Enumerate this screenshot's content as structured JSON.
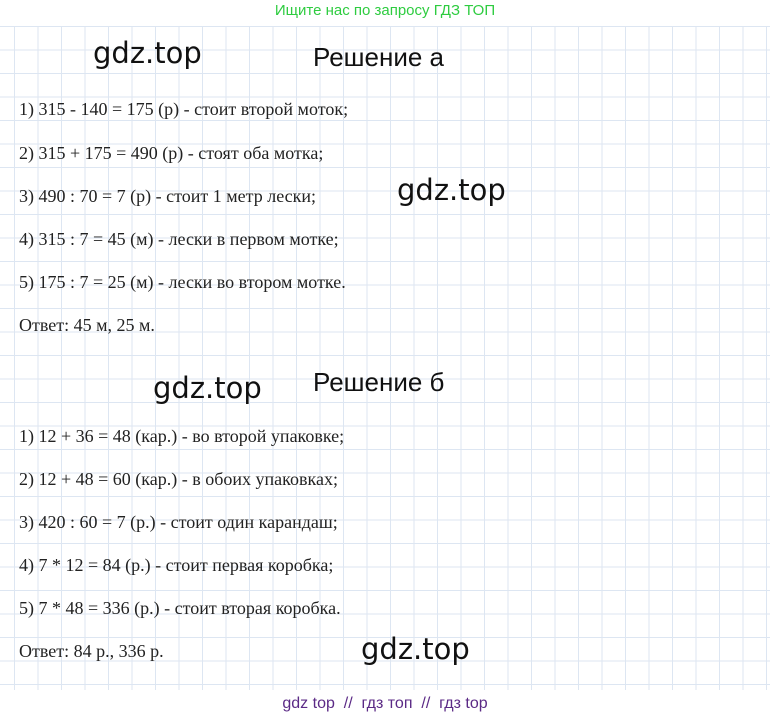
{
  "top_banner": "Ищите нас по запросу ГДЗ ТОП",
  "watermark": "gdz.top",
  "part_a": {
    "title": "Решение а",
    "lines": [
      "1) 315 - 140 = 175 (р) - стоит второй моток;",
      "2) 315 + 175 = 490 (р) - стоят оба мотка;",
      "3) 490 : 70 = 7 (р) - стоит 1 метр лески;",
      "4) 315 : 7 = 45 (м) - лески в первом мотке;",
      "5) 175 : 7 = 25 (м) - лески во втором мотке."
    ],
    "answer": "Ответ: 45 м, 25 м."
  },
  "part_b": {
    "title": "Решение б",
    "lines": [
      "1) 12 + 36 = 48 (кар.) - во второй упаковке;",
      "2) 12 + 48 = 60 (кар.) - в обоих упаковках;",
      "3) 420 : 60 = 7 (р.) - стоит один карандаш;",
      "4) 7 * 12 = 84 (р.) - стоит первая коробка;",
      "5) 7 * 48 = 336 (р.) - стоит вторая коробка."
    ],
    "answer": "Ответ: 84 р., 336 р."
  },
  "footer": "gdz top  //  гдз топ  //  гдз top"
}
